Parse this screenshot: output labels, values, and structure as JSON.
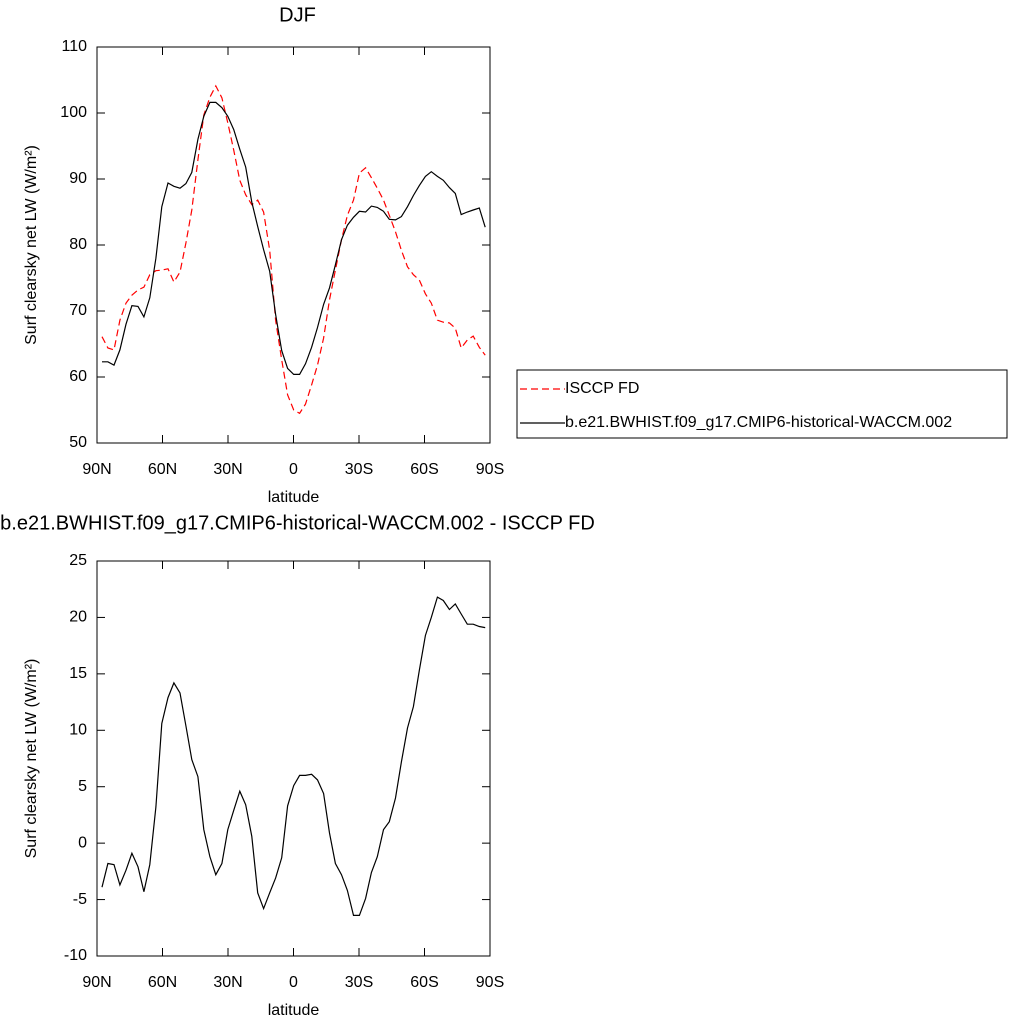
{
  "chart_data": [
    {
      "type": "line",
      "title": "DJF",
      "xlabel": "latitude",
      "ylabel": "Surf clearsky net LW (W/m²)",
      "x": [
        87.7,
        85.0,
        82.2,
        79.5,
        76.7,
        74.0,
        71.2,
        68.5,
        65.8,
        63.0,
        60.3,
        57.5,
        54.8,
        52.0,
        49.3,
        46.6,
        43.8,
        41.1,
        38.3,
        35.6,
        32.8,
        30.1,
        27.4,
        24.6,
        21.9,
        19.1,
        16.4,
        13.7,
        10.9,
        8.2,
        5.4,
        2.7,
        -0.1,
        -2.8,
        -5.5,
        -8.3,
        -11.0,
        -13.8,
        -16.5,
        -19.2,
        -22.0,
        -24.7,
        -27.5,
        -30.2,
        -33.0,
        -35.7,
        -38.4,
        -41.2,
        -43.9,
        -46.7,
        -49.4,
        -52.2,
        -54.9,
        -57.6,
        -60.4,
        -63.1,
        -65.9,
        -68.6,
        -71.4,
        -74.1,
        -76.8,
        -79.6,
        -82.3,
        -85.1,
        -87.8
      ],
      "series": [
        {
          "name": "ISCCP FD",
          "color": "#ff0000",
          "line_style": "dashed",
          "values": [
            66.1,
            64.4,
            64.1,
            68.6,
            71.2,
            72.4,
            73.2,
            73.6,
            75.5,
            76.1,
            76.2,
            76.4,
            74.4,
            75.9,
            80.3,
            85.3,
            92.9,
            99.7,
            102.4,
            104.1,
            102.3,
            98.5,
            94.4,
            89.8,
            87.6,
            86.1,
            86.8,
            85.0,
            79.2,
            68.6,
            62.6,
            57.3,
            55.0,
            54.5,
            55.9,
            58.8,
            61.8,
            65.9,
            71.7,
            76.2,
            80.8,
            84.5,
            86.8,
            90.9,
            91.7,
            90.2,
            88.6,
            86.8,
            84.5,
            82.0,
            79.2,
            76.7,
            75.5,
            74.7,
            72.6,
            71.2,
            68.6,
            68.3,
            68.2,
            67.4,
            64.4,
            65.6,
            66.2,
            64.5,
            63.3
          ]
        },
        {
          "name": "b.e21.BWHIST.f09_g17.CMIP6-historical-WACCM.002",
          "color": "#000000",
          "line_style": "solid",
          "values": [
            62.3,
            62.3,
            61.8,
            64.1,
            68.0,
            70.8,
            70.7,
            69.1,
            72.0,
            78.0,
            85.8,
            89.4,
            88.9,
            88.6,
            89.3,
            91.0,
            96.0,
            99.5,
            101.6,
            101.6,
            100.8,
            99.5,
            97.5,
            94.5,
            91.8,
            86.5,
            82.8,
            79.3,
            76.0,
            69.5,
            64.0,
            61.3,
            60.4,
            60.4,
            62.0,
            64.5,
            67.5,
            71.0,
            73.5,
            77.0,
            80.8,
            83.0,
            84.2,
            85.1,
            85.0,
            85.9,
            85.7,
            85.1,
            83.9,
            83.8,
            84.3,
            85.8,
            87.5,
            89.0,
            90.4,
            91.1,
            90.4,
            89.8,
            88.7,
            87.8,
            84.6,
            85.0,
            85.3,
            85.6,
            82.7
          ]
        }
      ],
      "xlim": [
        90,
        -90
      ],
      "xticks": [
        {
          "value": 90,
          "label": "90N"
        },
        {
          "value": 60,
          "label": "60N"
        },
        {
          "value": 30,
          "label": "30N"
        },
        0,
        {
          "value": -30,
          "label": "30S"
        },
        {
          "value": -60,
          "label": "60S"
        },
        {
          "value": -90,
          "label": "90S"
        }
      ],
      "ylim": [
        50,
        110
      ],
      "yticks": [
        50,
        60,
        70,
        80,
        90,
        100,
        110
      ],
      "legend": "right"
    },
    {
      "type": "line",
      "title": "b.e21.BWHIST.f09_g17.CMIP6-historical-WACCM.002 - ISCCP FD",
      "xlabel": "latitude",
      "ylabel": "Surf clearsky net LW (W/m²)",
      "x": [
        87.7,
        85.0,
        82.2,
        79.5,
        76.7,
        74.0,
        71.2,
        68.5,
        65.8,
        63.0,
        60.3,
        57.5,
        54.8,
        52.0,
        49.3,
        46.6,
        43.8,
        41.1,
        38.3,
        35.6,
        32.8,
        30.1,
        27.4,
        24.6,
        21.9,
        19.1,
        16.4,
        13.7,
        10.9,
        8.2,
        5.4,
        2.7,
        -0.1,
        -2.8,
        -5.5,
        -8.3,
        -11.0,
        -13.8,
        -16.5,
        -19.2,
        -22.0,
        -24.7,
        -27.5,
        -30.2,
        -33.0,
        -35.7,
        -38.4,
        -41.2,
        -43.9,
        -46.7,
        -49.4,
        -52.2,
        -54.9,
        -57.6,
        -60.4,
        -63.1,
        -65.9,
        -68.6,
        -71.4,
        -74.1,
        -76.8,
        -79.6,
        -82.3,
        -85.1,
        -87.8
      ],
      "values": [
        -3.9,
        -1.8,
        -1.9,
        -3.7,
        -2.4,
        -0.9,
        -2.1,
        -4.3,
        -1.9,
        3.2,
        10.6,
        12.9,
        14.2,
        13.3,
        10.4,
        7.4,
        5.9,
        1.2,
        -1.2,
        -2.8,
        -1.8,
        1.2,
        2.9,
        4.6,
        3.4,
        0.6,
        -4.4,
        -5.8,
        -4.4,
        -3.1,
        -1.3,
        3.3,
        5.1,
        6.0,
        6.0,
        6.1,
        5.6,
        4.4,
        0.9,
        -1.8,
        -2.8,
        -4.2,
        -6.4,
        -6.4,
        -4.9,
        -2.6,
        -1.2,
        1.2,
        1.9,
        4.0,
        7.2,
        10.2,
        12.1,
        15.3,
        18.4,
        20.0,
        21.8,
        21.5,
        20.7,
        21.2,
        20.3,
        19.4,
        19.4,
        19.2,
        19.1
      ],
      "color": "#000000",
      "xlim": [
        90,
        -90
      ],
      "xticks": [
        {
          "value": 90,
          "label": "90N"
        },
        {
          "value": 60,
          "label": "60N"
        },
        {
          "value": 30,
          "label": "30N"
        },
        0,
        {
          "value": -30,
          "label": "30S"
        },
        {
          "value": -60,
          "label": "60S"
        },
        {
          "value": -90,
          "label": "90S"
        }
      ],
      "ylim": [
        -10,
        25
      ],
      "yticks": [
        -10,
        -5,
        0,
        5,
        10,
        15,
        20,
        25
      ]
    }
  ]
}
